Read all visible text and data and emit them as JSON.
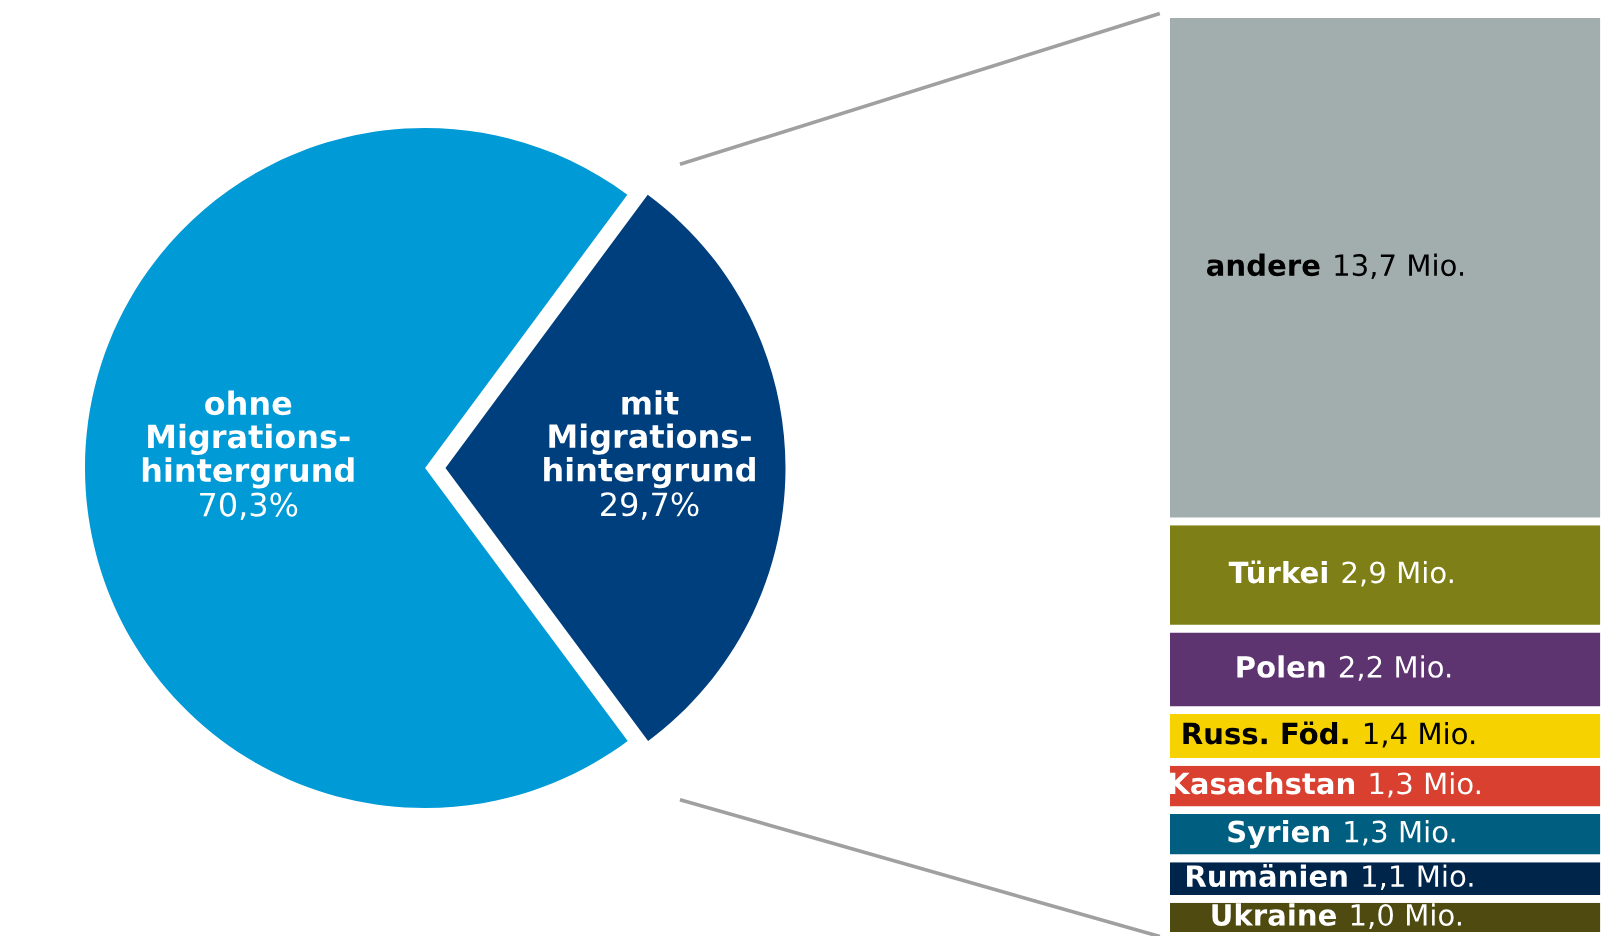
{
  "chart_data": [
    {
      "type": "pie",
      "categories": [
        "ohne\nMigrations-\nhintergrund",
        "mit\nMigrations-\nhintergrund"
      ],
      "values": [
        70.3,
        29.7
      ],
      "colors": [
        "#009ad6",
        "#003f7d"
      ],
      "value_labels": [
        "70,3%",
        "29,7%"
      ],
      "legend": false
    },
    {
      "type": "bar",
      "stacked": true,
      "categories": [
        null
      ],
      "legend": false,
      "series": [
        {
          "name": "Ukraine",
          "color": "#4f4a10",
          "values": [
            1.0
          ],
          "value_labels": [
            "1,0 Mio."
          ]
        },
        {
          "name": "Rumänien",
          "color": "#00254a",
          "values": [
            1.1
          ],
          "value_labels": [
            "1,1 Mio."
          ]
        },
        {
          "name": "Syrien",
          "color": "#005f80",
          "values": [
            1.3
          ],
          "value_labels": [
            "1,3 Mio."
          ]
        },
        {
          "name": "Kasachstan",
          "color": "#d9402f",
          "values": [
            1.3
          ],
          "value_labels": [
            "1,3 Mio."
          ]
        },
        {
          "name": "Russ. Föd.",
          "color": "#f6d300",
          "values": [
            1.4
          ],
          "value_labels": [
            "1,4 Mio."
          ]
        },
        {
          "name": "Polen",
          "color": "#5e3470",
          "values": [
            2.2
          ],
          "value_labels": [
            "2,2 Mio."
          ]
        },
        {
          "name": "Türkei",
          "color": "#7f7f17",
          "values": [
            2.9
          ],
          "value_labels": [
            "2,9 Mio."
          ]
        },
        {
          "name": "andere",
          "color": "#a2adad",
          "values": [
            13.7
          ],
          "value_labels": [
            "13,7 Mio."
          ]
        }
      ]
    }
  ]
}
